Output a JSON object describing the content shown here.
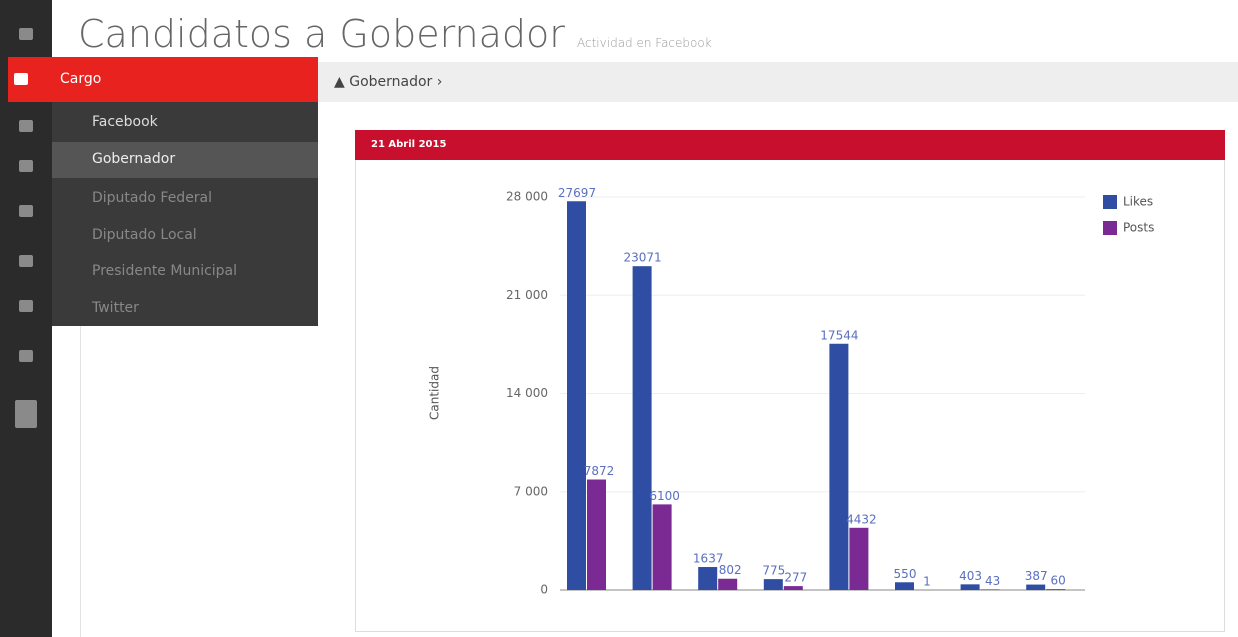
{
  "header": {
    "title": "Candidatos a Gobernador",
    "subtitle": "Actividad en Facebook"
  },
  "menu": {
    "active": "Cargo",
    "items": [
      "Facebook",
      "Gobernador",
      "Diputado Federal",
      "Diputado Local",
      "Presidente Municipal",
      "Twitter"
    ]
  },
  "breadcrumb": "Gobernador",
  "panel": {
    "title": "21 Abril 2015"
  },
  "chart_data": {
    "type": "bar",
    "categories": [
      null,
      null,
      null,
      null,
      null,
      null,
      null,
      null
    ],
    "series": [
      {
        "name": "Likes",
        "color": "#2f4ea3",
        "values": [
          27697,
          23071,
          1637,
          775,
          17544,
          550,
          403,
          387
        ]
      },
      {
        "name": "Posts",
        "color": "#7a2a92",
        "values": [
          7872,
          6100,
          802,
          277,
          4432,
          1,
          43,
          60
        ]
      }
    ],
    "y_label": "Cantidad",
    "ylim": [
      0,
      28000
    ],
    "yticks": [
      0,
      {
        "value": 7000,
        "label": "7 000"
      },
      {
        "value": 14000,
        "label": "14 000"
      },
      {
        "value": 21000,
        "label": "21 000"
      },
      {
        "value": 28000,
        "label": "28 000"
      }
    ],
    "grid": true,
    "legend": "top-right"
  }
}
